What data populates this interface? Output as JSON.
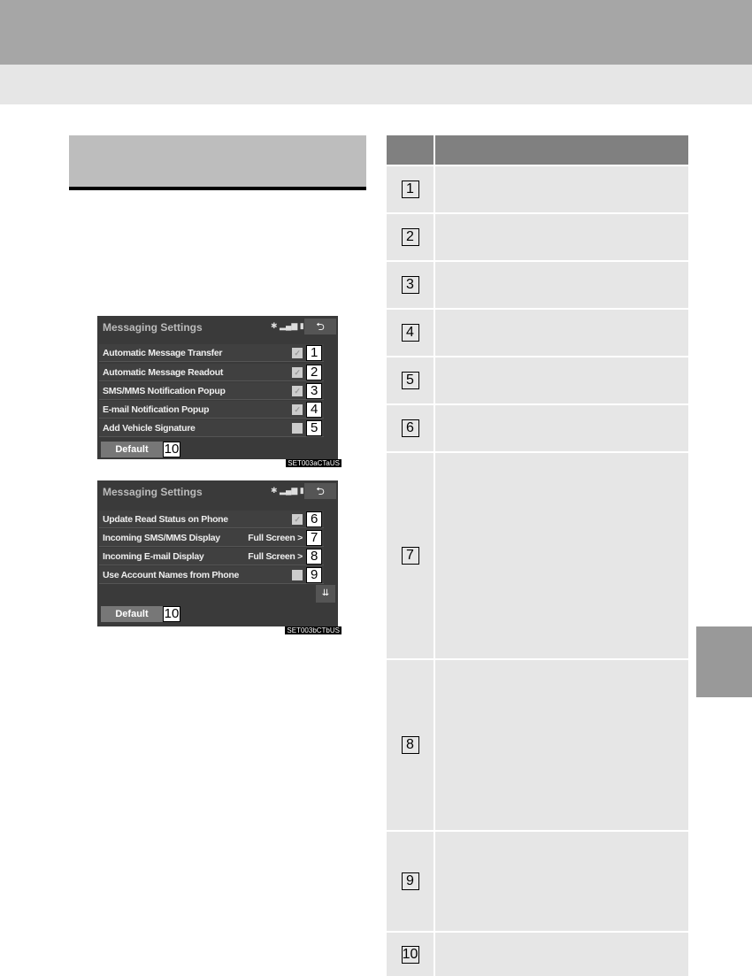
{
  "screens": [
    {
      "title": "Messaging Settings",
      "status": "✱ ▂▄▆ ▮",
      "back": "⮌",
      "rows": [
        {
          "label": "Automatic Message Transfer",
          "checked": true,
          "num": "1"
        },
        {
          "label": "Automatic Message Readout",
          "checked": true,
          "num": "2"
        },
        {
          "label": "SMS/MMS Notification Popup",
          "checked": true,
          "num": "3"
        },
        {
          "label": "E-mail Notification Popup",
          "checked": true,
          "num": "4"
        },
        {
          "label": "Add Vehicle Signature",
          "checked": false,
          "num": "5"
        }
      ],
      "default": "Default",
      "default_num": "10",
      "code": "SET003aCTaUS"
    },
    {
      "title": "Messaging Settings",
      "status": "✱ ▂▄▆ ▮",
      "back": "⮌",
      "rows": [
        {
          "label": "Update Read Status on Phone",
          "checked": true,
          "num": "6"
        },
        {
          "label": "Incoming SMS/MMS Display",
          "value": "Full Screen >",
          "num": "7"
        },
        {
          "label": "Incoming E-mail Display",
          "value": "Full Screen >",
          "num": "8"
        },
        {
          "label": "Use Account Names from Phone",
          "checked": false,
          "num": "9"
        }
      ],
      "scroll": "⇊",
      "default": "Default",
      "default_num": "10",
      "code": "SET003bCTbUS"
    }
  ],
  "table": {
    "rows": [
      "1",
      "2",
      "3",
      "4",
      "5",
      "6",
      "7",
      "8",
      "9",
      "10"
    ]
  },
  "check_mark": "✓"
}
